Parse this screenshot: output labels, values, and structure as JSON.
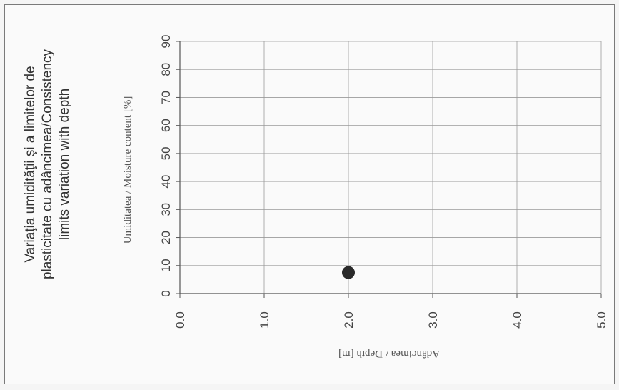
{
  "chart_data": {
    "type": "scatter",
    "title_lines": [
      "Variaţia umidităţii şi a limitelor de",
      "plasticitate cu adâncimea/Consistency",
      "limits variation with depth"
    ],
    "xlabel": "Adâncimea / Depth [m]",
    "ylabel": "Umiditatea / Moisture content [%]",
    "xlim": [
      0,
      5
    ],
    "ylim": [
      0,
      90
    ],
    "x_ticks": [
      "0.0",
      "1.0",
      "2.0",
      "3.0",
      "4.0",
      "5.0"
    ],
    "y_ticks": [
      "0",
      "10",
      "20",
      "30",
      "40",
      "50",
      "60",
      "70",
      "80",
      "90"
    ],
    "grid": true,
    "series": [
      {
        "x": [
          2.0
        ],
        "y": [
          7.5
        ],
        "color": "#2a2a2a"
      }
    ]
  }
}
